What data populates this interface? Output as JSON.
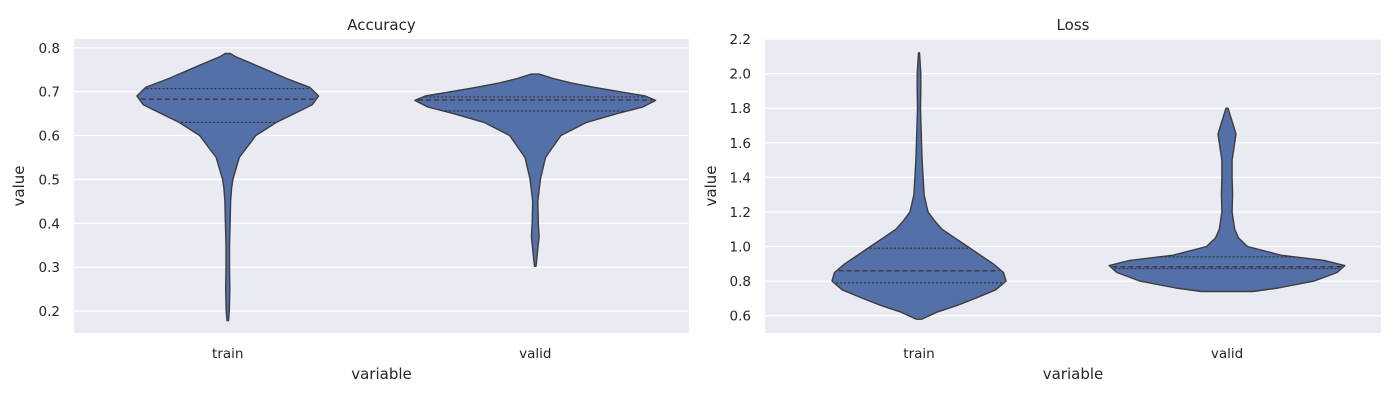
{
  "colors": {
    "violin_fill": "#5470a8",
    "axes_bg": "#eaeaf2",
    "edge": "#3d3d3d"
  },
  "chart_data": [
    {
      "type": "violin",
      "title": "Accuracy",
      "xlabel": "variable",
      "ylabel": "value",
      "categories": [
        "train",
        "valid"
      ],
      "ylim": [
        0.15,
        0.82
      ],
      "yticks": [
        0.2,
        0.3,
        0.4,
        0.5,
        0.6,
        0.7,
        0.8
      ],
      "ytick_labels": [
        "0.2",
        "0.3",
        "0.4",
        "0.5",
        "0.6",
        "0.7",
        "0.8"
      ],
      "grid": true,
      "violins": [
        {
          "category": "train",
          "quartiles": {
            "q1": 0.63,
            "median": 0.683,
            "q3": 0.707
          },
          "profile": [
            [
              0.178,
              0.003
            ],
            [
              0.2,
              0.006
            ],
            [
              0.25,
              0.008
            ],
            [
              0.3,
              0.007
            ],
            [
              0.35,
              0.007
            ],
            [
              0.4,
              0.009
            ],
            [
              0.45,
              0.011
            ],
            [
              0.48,
              0.015
            ],
            [
              0.5,
              0.02
            ],
            [
              0.55,
              0.045
            ],
            [
              0.6,
              0.11
            ],
            [
              0.63,
              0.19
            ],
            [
              0.65,
              0.26
            ],
            [
              0.67,
              0.33
            ],
            [
              0.69,
              0.355
            ],
            [
              0.71,
              0.32
            ],
            [
              0.73,
              0.23
            ],
            [
              0.75,
              0.15
            ],
            [
              0.77,
              0.07
            ],
            [
              0.78,
              0.03
            ],
            [
              0.787,
              0.01
            ]
          ]
        },
        {
          "category": "valid",
          "quartiles": {
            "q1": 0.656,
            "median": 0.681,
            "q3": 0.688
          },
          "profile": [
            [
              0.302,
              0.003
            ],
            [
              0.33,
              0.008
            ],
            [
              0.37,
              0.015
            ],
            [
              0.4,
              0.012
            ],
            [
              0.45,
              0.01
            ],
            [
              0.5,
              0.02
            ],
            [
              0.55,
              0.04
            ],
            [
              0.6,
              0.1
            ],
            [
              0.63,
              0.2
            ],
            [
              0.65,
              0.32
            ],
            [
              0.665,
              0.42
            ],
            [
              0.68,
              0.47
            ],
            [
              0.69,
              0.43
            ],
            [
              0.7,
              0.33
            ],
            [
              0.71,
              0.23
            ],
            [
              0.72,
              0.14
            ],
            [
              0.73,
              0.07
            ],
            [
              0.74,
              0.015
            ]
          ]
        }
      ]
    },
    {
      "type": "violin",
      "title": "Loss",
      "xlabel": "variable",
      "ylabel": "value",
      "categories": [
        "train",
        "valid"
      ],
      "ylim": [
        0.5,
        2.2
      ],
      "yticks": [
        0.6,
        0.8,
        1.0,
        1.2,
        1.4,
        1.6,
        1.8,
        2.0,
        2.2
      ],
      "ytick_labels": [
        "0.6",
        "0.8",
        "1.0",
        "1.2",
        "1.4",
        "1.6",
        "1.8",
        "2.0",
        "2.2"
      ],
      "grid": true,
      "violins": [
        {
          "category": "train",
          "quartiles": {
            "q1": 0.79,
            "median": 0.86,
            "q3": 0.99
          },
          "profile": [
            [
              0.58,
              0.01
            ],
            [
              0.62,
              0.07
            ],
            [
              0.66,
              0.15
            ],
            [
              0.7,
              0.22
            ],
            [
              0.75,
              0.3
            ],
            [
              0.8,
              0.34
            ],
            [
              0.85,
              0.33
            ],
            [
              0.9,
              0.29
            ],
            [
              0.95,
              0.24
            ],
            [
              1.0,
              0.19
            ],
            [
              1.05,
              0.14
            ],
            [
              1.1,
              0.09
            ],
            [
              1.15,
              0.06
            ],
            [
              1.2,
              0.035
            ],
            [
              1.3,
              0.02
            ],
            [
              1.5,
              0.012
            ],
            [
              1.7,
              0.008
            ],
            [
              1.8,
              0.006
            ],
            [
              1.9,
              0.007
            ],
            [
              2.0,
              0.007
            ],
            [
              2.12,
              0.002
            ]
          ]
        },
        {
          "category": "valid",
          "quartiles": {
            "q1": 0.873,
            "median": 0.883,
            "q3": 0.94
          },
          "profile": [
            [
              0.74,
              0.1
            ],
            [
              0.76,
              0.2
            ],
            [
              0.8,
              0.34
            ],
            [
              0.85,
              0.43
            ],
            [
              0.89,
              0.46
            ],
            [
              0.92,
              0.38
            ],
            [
              0.95,
              0.21
            ],
            [
              1.0,
              0.08
            ],
            [
              1.05,
              0.045
            ],
            [
              1.1,
              0.03
            ],
            [
              1.2,
              0.02
            ],
            [
              1.3,
              0.022
            ],
            [
              1.4,
              0.02
            ],
            [
              1.5,
              0.02
            ],
            [
              1.6,
              0.03
            ],
            [
              1.65,
              0.035
            ],
            [
              1.7,
              0.025
            ],
            [
              1.8,
              0.004
            ]
          ]
        }
      ]
    }
  ]
}
